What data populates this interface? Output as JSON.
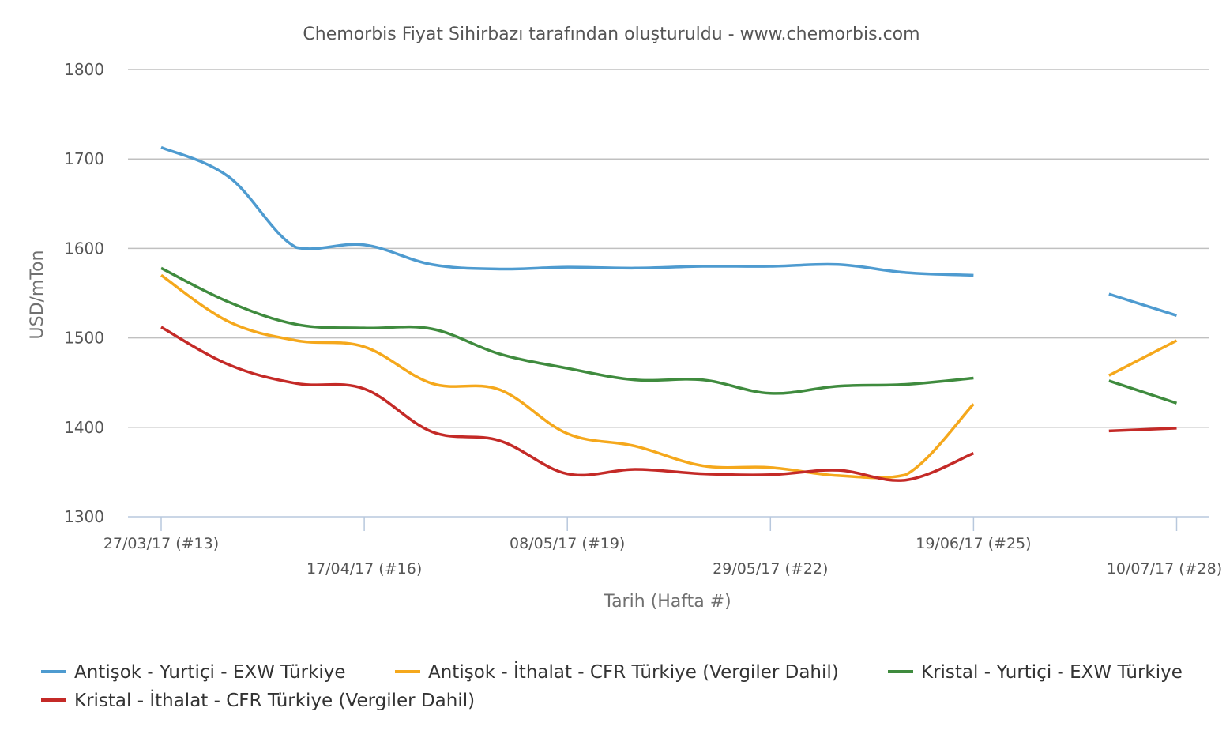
{
  "chart_data": {
    "type": "line",
    "title": "Chemorbis Fiyat Sihirbazı tarafından oluşturuldu - www.chemorbis.com",
    "xlabel": "Tarih (Hafta #)",
    "ylabel": "USD/mTon",
    "ylim": [
      1300,
      1800
    ],
    "yticks": [
      "1300",
      "1400",
      "1500",
      "1600",
      "1700",
      "1800"
    ],
    "grid": true,
    "legend_position": "bottom",
    "x_weeks": [
      13,
      14,
      15,
      16,
      17,
      18,
      19,
      20,
      21,
      22,
      23,
      24,
      25,
      26,
      27,
      28
    ],
    "xtick_labels": [
      {
        "week": 13,
        "label": "27/03/17 (#13)",
        "row": 1
      },
      {
        "week": 16,
        "label": "17/04/17 (#16)",
        "row": 2
      },
      {
        "week": 19,
        "label": "08/05/17 (#19)",
        "row": 1
      },
      {
        "week": 22,
        "label": "29/05/17 (#22)",
        "row": 2
      },
      {
        "week": 25,
        "label": "19/06/17 (#25)",
        "row": 1
      },
      {
        "week": 28,
        "label": "10/07/17 (#28)",
        "row": 2
      }
    ],
    "series": [
      {
        "name": "Antişok - Yurtiçi - EXW Türkiye",
        "color": "#4e9bd0",
        "values": [
          1713,
          1680,
          1601,
          1604,
          1582,
          1577,
          1579,
          1578,
          1580,
          1580,
          1582,
          1573,
          1570,
          null,
          1549,
          1525
        ]
      },
      {
        "name": "Antişok - İthalat - CFR Türkiye (Vergiler Dahil)",
        "color": "#f5a81c",
        "values": [
          1570,
          1518,
          1497,
          1490,
          1449,
          1442,
          1393,
          1379,
          1357,
          1355,
          1346,
          1347,
          1426,
          null,
          1458,
          1497
        ]
      },
      {
        "name": "Kristal - Yurtiçi - EXW Türkiye",
        "color": "#3f8b3e",
        "values": [
          1578,
          1540,
          1515,
          1511,
          1510,
          1482,
          1466,
          1453,
          1453,
          1438,
          1446,
          1448,
          1455,
          null,
          1452,
          1427
        ]
      },
      {
        "name": "Kristal - İthalat - CFR Türkiye (Vergiler Dahil)",
        "color": "#c42a27",
        "values": [
          1512,
          1470,
          1449,
          1443,
          1395,
          1385,
          1348,
          1353,
          1348,
          1347,
          1352,
          1341,
          1371,
          null,
          1396,
          1399
        ]
      }
    ]
  }
}
